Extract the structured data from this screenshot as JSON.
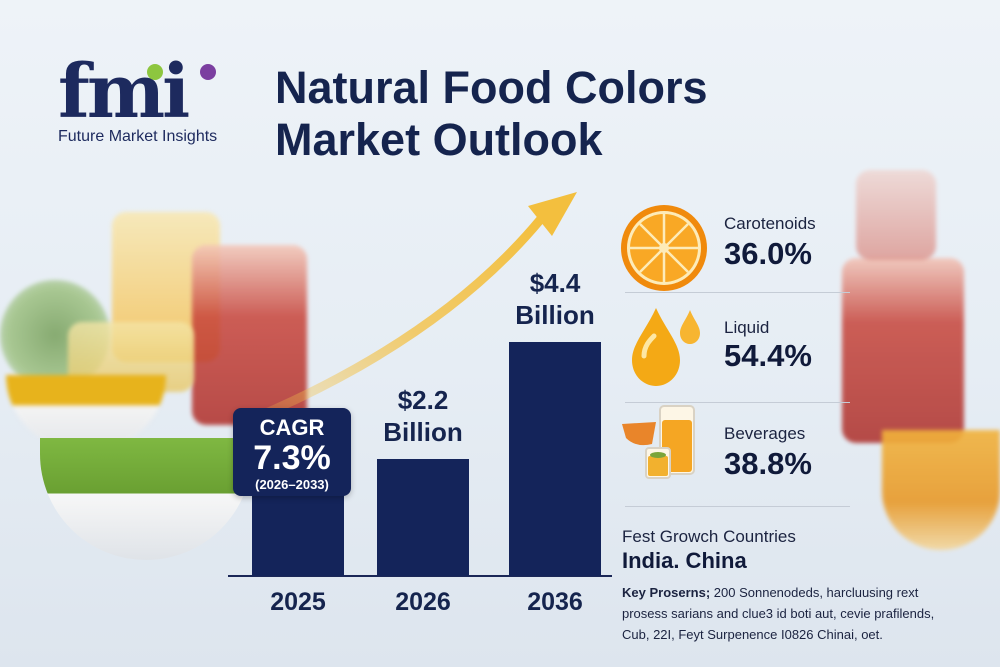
{
  "brand": {
    "logo_text": "fmi",
    "tagline": "Future Market Insights"
  },
  "title": {
    "line1": "Natural Food Colors",
    "line2": "Market Outlook"
  },
  "chart_data": {
    "type": "bar",
    "title": "Natural Food Colors Market Outlook",
    "categories": [
      "2025",
      "2026",
      "2036"
    ],
    "values": [
      1.6,
      2.2,
      4.4
    ],
    "value_unit": "USD Billion",
    "data_labels": [
      "",
      "$2.2 Billion",
      "$4.4 Billion"
    ],
    "label_lines": [
      [
        "",
        ""
      ],
      [
        "$2.2",
        "Billion"
      ],
      [
        "$4.4",
        "Billion"
      ]
    ],
    "ylim": [
      0,
      4.4
    ],
    "grid": false,
    "xlabel": "",
    "ylabel": "",
    "trend_arrow": "upward"
  },
  "cagr": {
    "label": "CAGR",
    "value": "7.3%",
    "period": "(2026–2033)"
  },
  "segments": [
    {
      "name": "Carotenoids",
      "value": "36.0%",
      "icon": "orange-slice-icon"
    },
    {
      "name": "Liquid",
      "value": "54.4%",
      "icon": "liquid-drop-icon"
    },
    {
      "name": "Beverages",
      "value": "38.8%",
      "icon": "beverage-glass-icon"
    }
  ],
  "countries": {
    "label": "Fest Growch Countries",
    "value": "India. China"
  },
  "players": {
    "label": "Key Proserns;",
    "text": "200 Sonnenodeds, harcluusing rext prosess sarians and clue3 id boti aut, cevie prafilends, Cub, 22I, Feyt Surpenence I0826 Chinai, oet."
  },
  "colors": {
    "navy": "#14245a",
    "title_text": "#15244e",
    "arrow_gold": "#f3c24a",
    "logo_green": "#8dc63f",
    "logo_purple": "#7b3fa0"
  }
}
